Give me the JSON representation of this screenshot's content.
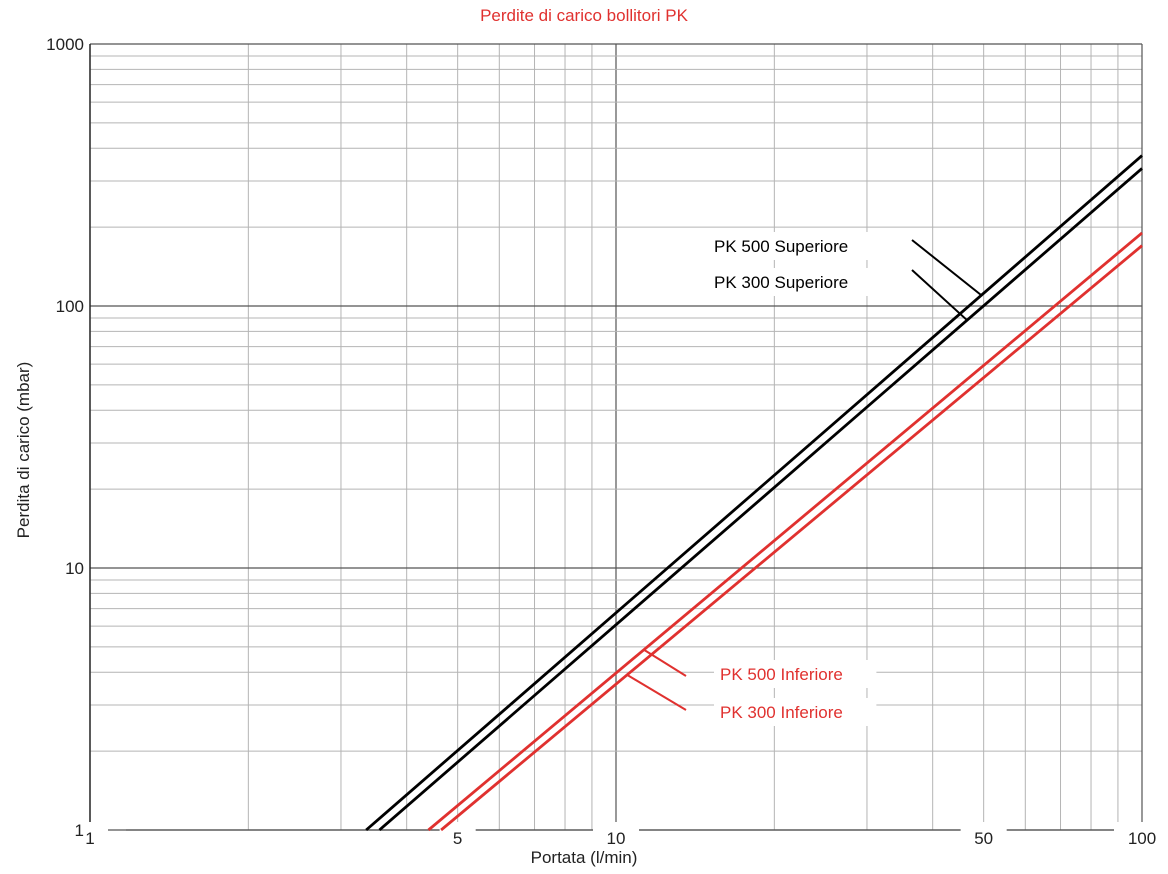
{
  "chart_data": {
    "type": "line",
    "title": "Perdite di carico bollitori PK",
    "xlabel": "Portata (l/min)",
    "ylabel": "Perdita di carico (mbar)",
    "x_scale": "log",
    "y_scale": "log",
    "xlim": [
      1,
      100
    ],
    "ylim": [
      1,
      1000
    ],
    "x_tick_labels": [
      {
        "value": 1,
        "label": "1"
      },
      {
        "value": 5,
        "label": "5"
      },
      {
        "value": 10,
        "label": "10"
      },
      {
        "value": 50,
        "label": "50"
      },
      {
        "value": 100,
        "label": "100"
      }
    ],
    "y_tick_labels": [
      {
        "value": 1,
        "label": "1"
      },
      {
        "value": 10,
        "label": "10"
      },
      {
        "value": 100,
        "label": "100"
      },
      {
        "value": 1000,
        "label": "1000"
      }
    ],
    "grid": true,
    "series": [
      {
        "name": "PK 500 Superiore",
        "color": "#000000",
        "x": [
          3.35,
          100
        ],
        "y": [
          1,
          375
        ]
      },
      {
        "name": "PK 300 Superiore",
        "color": "#000000",
        "x": [
          3.55,
          100
        ],
        "y": [
          1,
          335
        ]
      },
      {
        "name": "PK 500 Inferiore",
        "color": "#e0312f",
        "x": [
          4.4,
          100
        ],
        "y": [
          1,
          190
        ]
      },
      {
        "name": "PK 300 Inferiore",
        "color": "#e0312f",
        "x": [
          4.65,
          100
        ],
        "y": [
          1,
          170
        ]
      }
    ]
  }
}
